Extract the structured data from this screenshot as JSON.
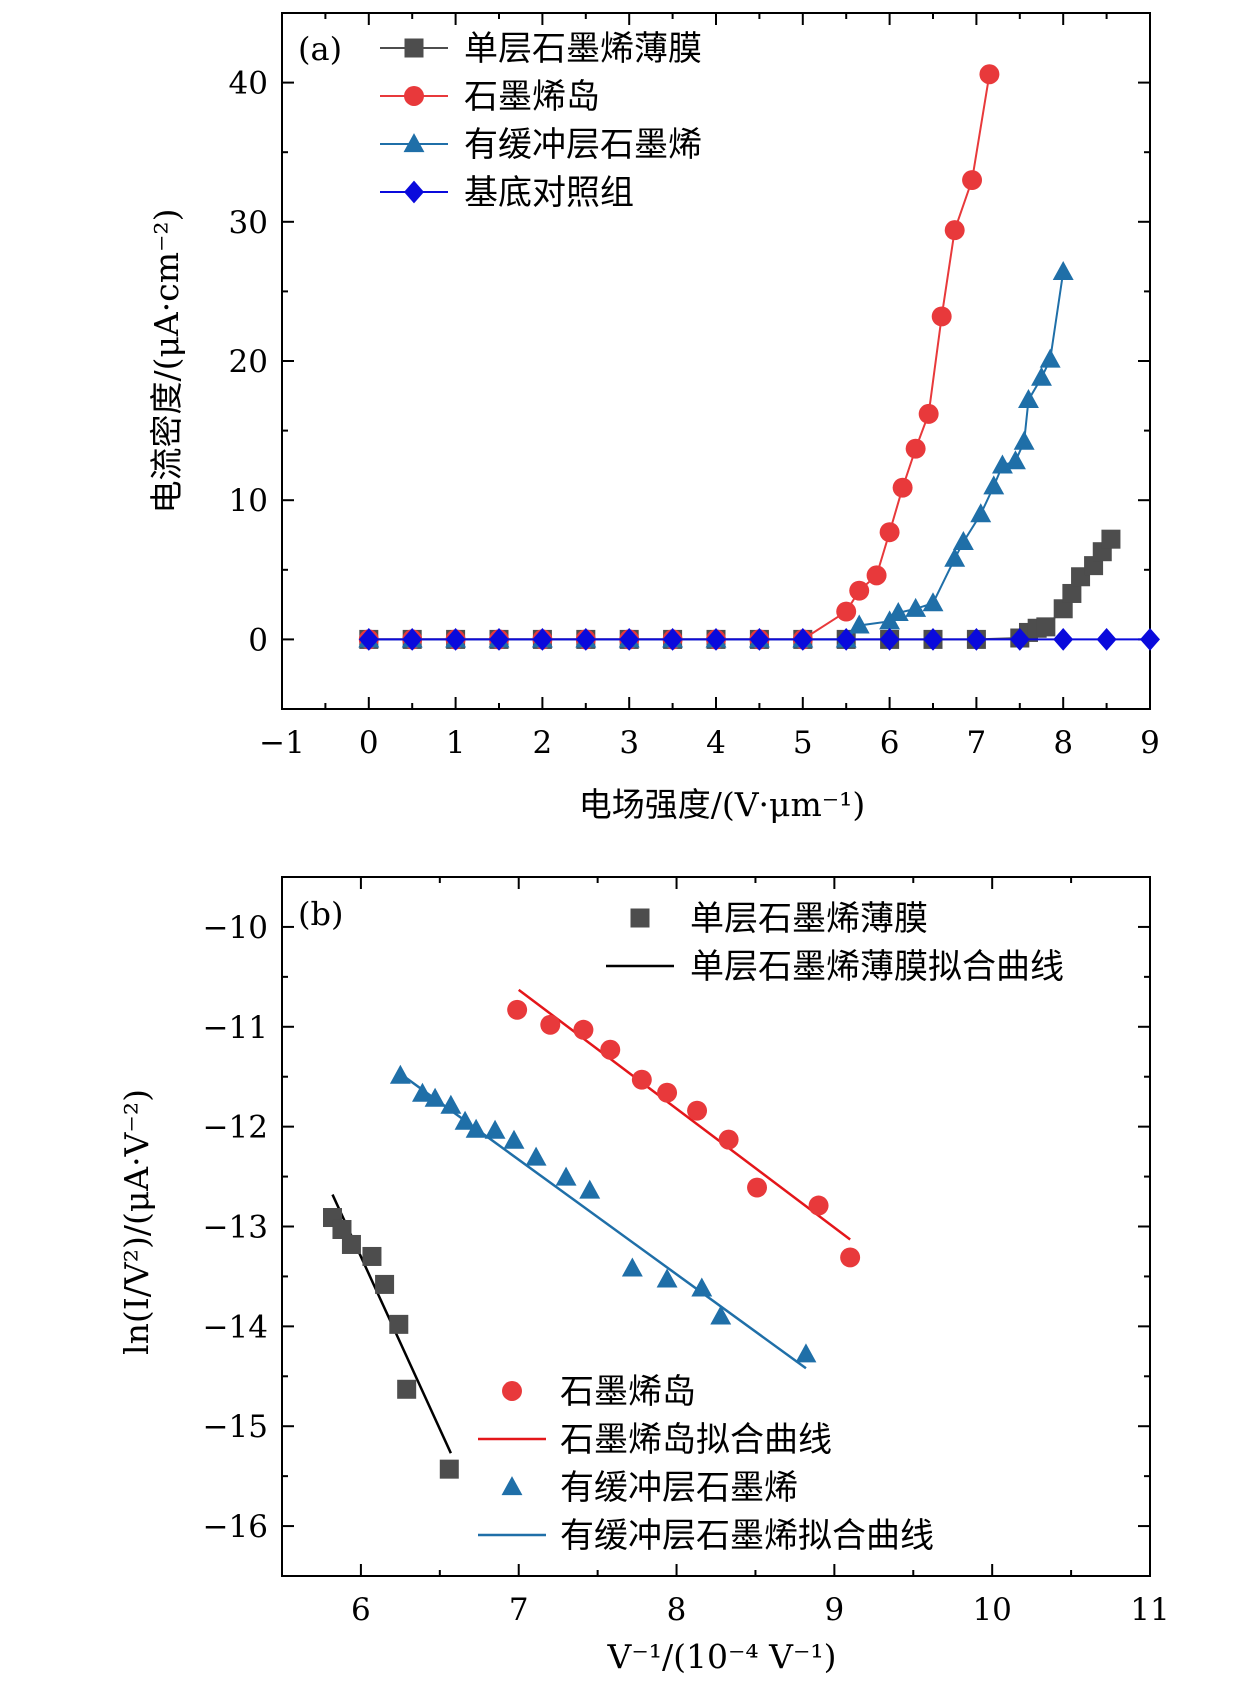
{
  "chart_data": [
    {
      "id": "a",
      "type": "line",
      "panel_label": "(a)",
      "title": "",
      "xlabel": "电场强度/(V·μm⁻¹)",
      "ylabel": "电流密度/(μA·cm⁻²)",
      "xlim": [
        -1,
        9
      ],
      "ylim": [
        -5,
        45
      ],
      "xticks": [
        -1,
        0,
        1,
        2,
        3,
        4,
        5,
        6,
        7,
        8,
        9
      ],
      "xtick_labels": [
        "−1",
        "0",
        "1",
        "2",
        "3",
        "4",
        "5",
        "6",
        "7",
        "8",
        "9"
      ],
      "yticks": [
        0,
        10,
        20,
        30,
        40
      ],
      "ytick_labels": [
        "0",
        "10",
        "20",
        "30",
        "40"
      ],
      "grid": false,
      "legend_position": "top-left",
      "series": [
        {
          "name": "单层石墨烯薄膜",
          "color": "#4d4d4d",
          "marker": "square",
          "line": true,
          "x": [
            0,
            0.5,
            1,
            1.5,
            2,
            2.5,
            3,
            3.5,
            4,
            4.5,
            5,
            5.5,
            6,
            6.5,
            7,
            7.5,
            7.6,
            7.7,
            7.8,
            8,
            8.1,
            8.2,
            8.35,
            8.45,
            8.55
          ],
          "y": [
            0,
            0,
            0,
            0,
            0,
            0,
            0,
            0,
            0,
            0,
            0,
            0,
            0,
            0,
            0,
            0.1,
            0.5,
            0.8,
            0.9,
            2.2,
            3.3,
            4.5,
            5.3,
            6.3,
            7.2
          ]
        },
        {
          "name": "石墨烯岛",
          "color": "#e8393b",
          "marker": "circle",
          "line": true,
          "x": [
            0,
            0.5,
            1,
            1.5,
            2,
            2.5,
            3,
            3.5,
            4,
            4.5,
            5,
            5.5,
            5.65,
            5.85,
            6,
            6.15,
            6.3,
            6.45,
            6.6,
            6.75,
            6.95,
            7.15
          ],
          "y": [
            0,
            0,
            0,
            0,
            0,
            0,
            0,
            0,
            0,
            0,
            0,
            2,
            3.5,
            4.6,
            7.7,
            10.9,
            13.7,
            16.2,
            23.2,
            29.4,
            33,
            40.6
          ]
        },
        {
          "name": "有缓冲层石墨烯",
          "color": "#1f6fa8",
          "marker": "triangle",
          "line": true,
          "x": [
            0,
            0.5,
            1,
            1.5,
            2,
            2.5,
            3,
            3.5,
            4,
            4.5,
            5,
            5.5,
            5.65,
            6,
            6.1,
            6.3,
            6.5,
            6.75,
            6.85,
            7.05,
            7.2,
            7.3,
            7.45,
            7.55,
            7.6,
            7.75,
            7.85,
            8
          ],
          "y": [
            0,
            0,
            0,
            0,
            0,
            0,
            0,
            0,
            0,
            0,
            0,
            0,
            1,
            1.3,
            1.9,
            2.2,
            2.6,
            5.8,
            7,
            9,
            11,
            12.5,
            12.8,
            14.2,
            17.2,
            18.8,
            20.1,
            26.4
          ]
        },
        {
          "name": "基底对照组",
          "color": "#0a0adc",
          "marker": "diamond",
          "line": true,
          "x": [
            0,
            0.5,
            1,
            1.5,
            2,
            2.5,
            3,
            3.5,
            4,
            4.5,
            5,
            5.5,
            6,
            6.5,
            7,
            7.5,
            8,
            8.5,
            9
          ],
          "y": [
            0,
            0,
            0,
            0,
            0,
            0,
            0,
            0,
            0,
            0,
            0,
            0,
            0,
            0,
            0,
            0,
            0,
            0,
            0
          ]
        }
      ]
    },
    {
      "id": "b",
      "type": "scatter",
      "panel_label": "(b)",
      "title": "",
      "xlabel": "V⁻¹/(10⁻⁴ V⁻¹)",
      "ylabel": "ln(I/V²)/(μA·V⁻²)",
      "xlim": [
        5.5,
        11
      ],
      "ylim": [
        -16.5,
        -9.5
      ],
      "xticks": [
        6,
        7,
        8,
        9,
        10,
        11
      ],
      "xtick_labels": [
        "6",
        "7",
        "8",
        "9",
        "10",
        "11"
      ],
      "yticks": [
        -10,
        -11,
        -12,
        -13,
        -14,
        -15,
        -16
      ],
      "ytick_labels": [
        "−10",
        "−11",
        "−12",
        "−13",
        "−14",
        "−15",
        "−16"
      ],
      "grid": false,
      "legend_position": "top-right and bottom-center",
      "series": [
        {
          "name": "单层石墨烯薄膜",
          "color": "#4d4d4d",
          "marker": "square",
          "x": [
            5.82,
            5.88,
            5.94,
            6.07,
            6.15,
            6.24,
            6.29,
            6.56
          ],
          "y": [
            -12.91,
            -13.03,
            -13.18,
            -13.3,
            -13.58,
            -13.98,
            -14.63,
            -15.43
          ]
        },
        {
          "name": "石墨烯岛",
          "color": "#e8393b",
          "marker": "circle",
          "x": [
            6.99,
            7.2,
            7.41,
            7.58,
            7.78,
            7.94,
            8.13,
            8.33,
            8.51,
            8.9,
            9.1
          ],
          "y": [
            -10.83,
            -10.98,
            -11.03,
            -11.23,
            -11.53,
            -11.66,
            -11.84,
            -12.13,
            -12.61,
            -12.79,
            -13.31
          ]
        },
        {
          "name": "有缓冲层石墨烯",
          "color": "#1f6fa8",
          "marker": "triangle",
          "x": [
            6.25,
            6.39,
            6.47,
            6.57,
            6.66,
            6.73,
            6.85,
            6.97,
            7.11,
            7.3,
            7.45,
            7.72,
            7.94,
            8.16,
            8.28,
            8.82
          ],
          "y": [
            -11.49,
            -11.67,
            -11.72,
            -11.79,
            -11.95,
            -12.03,
            -12.04,
            -12.14,
            -12.31,
            -12.51,
            -12.64,
            -13.42,
            -13.53,
            -13.62,
            -13.9,
            -14.28
          ]
        }
      ],
      "fits": [
        {
          "name": "单层石墨烯薄膜拟合曲线",
          "color": "#000000",
          "x": [
            5.82,
            6.57
          ],
          "y": [
            -12.68,
            -15.27
          ]
        },
        {
          "name": "石墨烯岛拟合曲线",
          "color": "#e4161a",
          "x": [
            7.0,
            9.1
          ],
          "y": [
            -10.63,
            -13.13
          ]
        },
        {
          "name": "有缓冲层石墨烯拟合曲线",
          "color": "#1f6fa8",
          "x": [
            6.25,
            8.82
          ],
          "y": [
            -11.47,
            -14.42
          ]
        }
      ],
      "legend_top_right": [
        "单层石墨烯薄膜",
        "单层石墨烯薄膜拟合曲线"
      ],
      "legend_bottom": [
        "石墨烯岛",
        "石墨烯岛拟合曲线",
        "有缓冲层石墨烯",
        "有缓冲层石墨烯拟合曲线"
      ]
    }
  ]
}
